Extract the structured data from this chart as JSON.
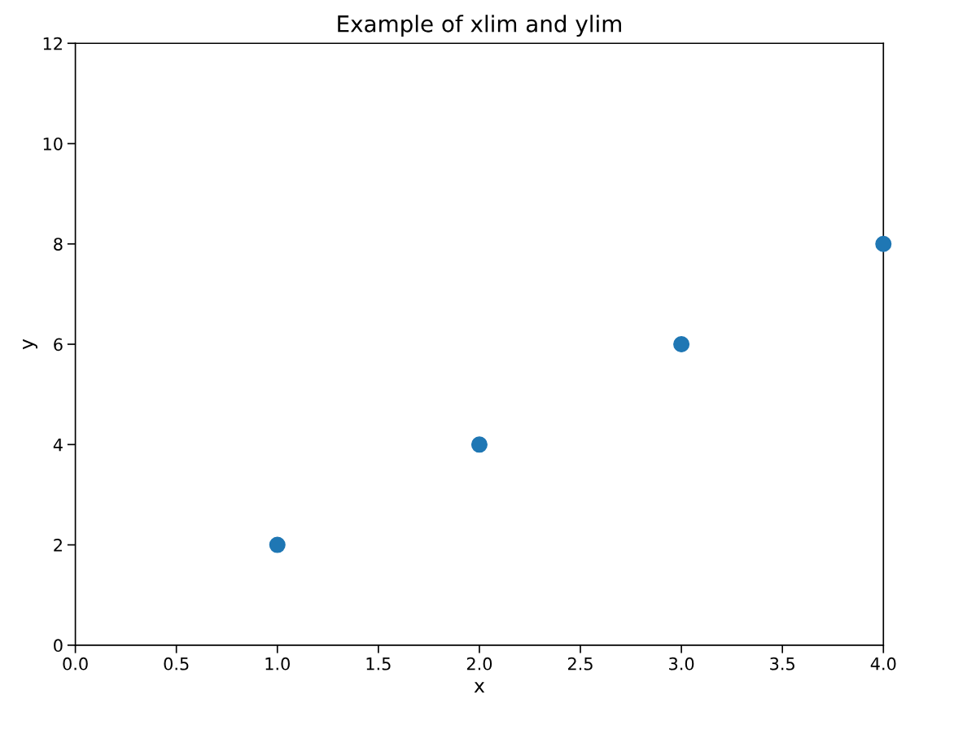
{
  "chart_data": {
    "type": "scatter",
    "title": "Example of xlim and ylim",
    "xlabel": "x",
    "ylabel": "y",
    "x": [
      1,
      2,
      3,
      4
    ],
    "series": [
      {
        "color": "#1f77b4",
        "values": [
          2,
          4,
          6,
          8
        ]
      }
    ],
    "xlim": [
      0,
      4
    ],
    "xticks": [
      {
        "value": 0,
        "label": "0.0"
      },
      {
        "value": 0.5,
        "label": "0.5"
      },
      {
        "value": 1,
        "label": "1.0"
      },
      {
        "value": 1.5,
        "label": "1.5"
      },
      {
        "value": 2,
        "label": "2.0"
      },
      {
        "value": 2.5,
        "label": "2.5"
      },
      {
        "value": 3,
        "label": "3.0"
      },
      {
        "value": 3.5,
        "label": "3.5"
      },
      {
        "value": 4,
        "label": "4.0"
      }
    ],
    "ylim": [
      0,
      12
    ],
    "yticks": [
      0,
      2,
      4,
      6,
      8,
      10,
      12
    ],
    "grid": false,
    "marker": "circle"
  }
}
